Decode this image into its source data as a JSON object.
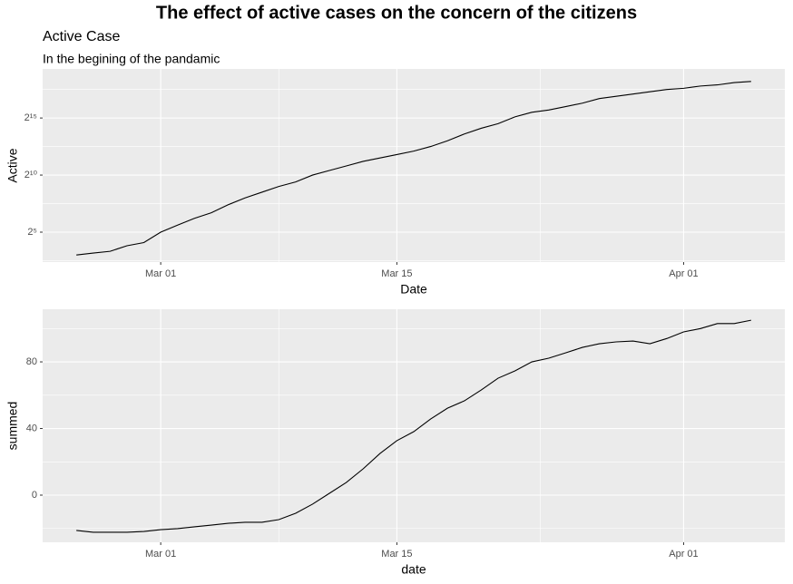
{
  "title": "The effect of active cases on the concern of the citizens",
  "chart_data": [
    {
      "type": "line",
      "title": "Active Case",
      "subtitle": "In the begining of the pandamic",
      "x_label": "Date",
      "y_label": "Active",
      "log_base": 2,
      "grid": true,
      "x": [
        "Feb 25",
        "Feb 26",
        "Feb 27",
        "Feb 28",
        "Feb 29",
        "Mar 01",
        "Mar 02",
        "Mar 03",
        "Mar 04",
        "Mar 05",
        "Mar 06",
        "Mar 07",
        "Mar 08",
        "Mar 09",
        "Mar 10",
        "Mar 11",
        "Mar 12",
        "Mar 13",
        "Mar 14",
        "Mar 15",
        "Mar 16",
        "Mar 17",
        "Mar 18",
        "Mar 19",
        "Mar 20",
        "Mar 21",
        "Mar 22",
        "Mar 23",
        "Mar 24",
        "Mar 25",
        "Mar 26",
        "Mar 27",
        "Mar 28",
        "Mar 29",
        "Mar 30",
        "Mar 31",
        "Apr 01",
        "Apr 02",
        "Apr 03",
        "Apr 04",
        "Apr 05"
      ],
      "xticks": [
        "Mar 01",
        "Mar 15",
        "Apr 01"
      ],
      "ylim": [
        5.2,
        645000
      ],
      "yticks": [
        {
          "value": 32,
          "label": "2⁵"
        },
        {
          "value": 1024,
          "label": "2¹⁰"
        },
        {
          "value": 32768,
          "label": "2¹⁵"
        }
      ],
      "series": [
        {
          "name": "Active",
          "color": "#000000",
          "values": [
            8,
            9,
            10,
            14,
            17,
            32,
            49,
            74,
            104,
            169,
            256,
            362,
            512,
            676,
            1024,
            1351,
            1783,
            2353,
            2896,
            3566,
            4389,
            5793,
            8192,
            12417,
            17560,
            23170,
            35120,
            46341,
            53232,
            65536,
            80684,
            106464,
            122295,
            140479,
            161371,
            185364,
            198668,
            228209,
            244589,
            280945,
            301124
          ]
        }
      ]
    },
    {
      "type": "line",
      "x_label": "date",
      "y_label": "summed",
      "grid": true,
      "x": [
        "Feb 25",
        "Feb 26",
        "Feb 27",
        "Feb 28",
        "Feb 29",
        "Mar 01",
        "Mar 02",
        "Mar 03",
        "Mar 04",
        "Mar 05",
        "Mar 06",
        "Mar 07",
        "Mar 08",
        "Mar 09",
        "Mar 10",
        "Mar 11",
        "Mar 12",
        "Mar 13",
        "Mar 14",
        "Mar 15",
        "Mar 16",
        "Mar 17",
        "Mar 18",
        "Mar 19",
        "Mar 20",
        "Mar 21",
        "Mar 22",
        "Mar 23",
        "Mar 24",
        "Mar 25",
        "Mar 26",
        "Mar 27",
        "Mar 28",
        "Mar 29",
        "Mar 30",
        "Mar 31",
        "Apr 01",
        "Apr 02",
        "Apr 03",
        "Apr 04",
        "Apr 05"
      ],
      "xticks": [
        "Mar 01",
        "Mar 15",
        "Apr 01"
      ],
      "ylim": [
        -28.3,
        111.6
      ],
      "yticks": [
        0,
        40,
        80
      ],
      "series": [
        {
          "name": "summed",
          "color": "#000000",
          "values": [
            -21.2,
            -22.3,
            -22.3,
            -22.3,
            -21.8,
            -20.7,
            -20.1,
            -19.0,
            -18.0,
            -16.9,
            -16.3,
            -16.3,
            -14.7,
            -10.9,
            -5.4,
            1.1,
            7.6,
            15.8,
            25.0,
            32.7,
            38.1,
            45.7,
            52.2,
            56.6,
            63.1,
            70.2,
            74.6,
            80.0,
            82.2,
            85.4,
            88.7,
            90.9,
            92.0,
            92.5,
            90.9,
            94.0,
            98.0,
            100.0,
            103.0,
            103.0,
            105.0
          ]
        }
      ]
    }
  ]
}
